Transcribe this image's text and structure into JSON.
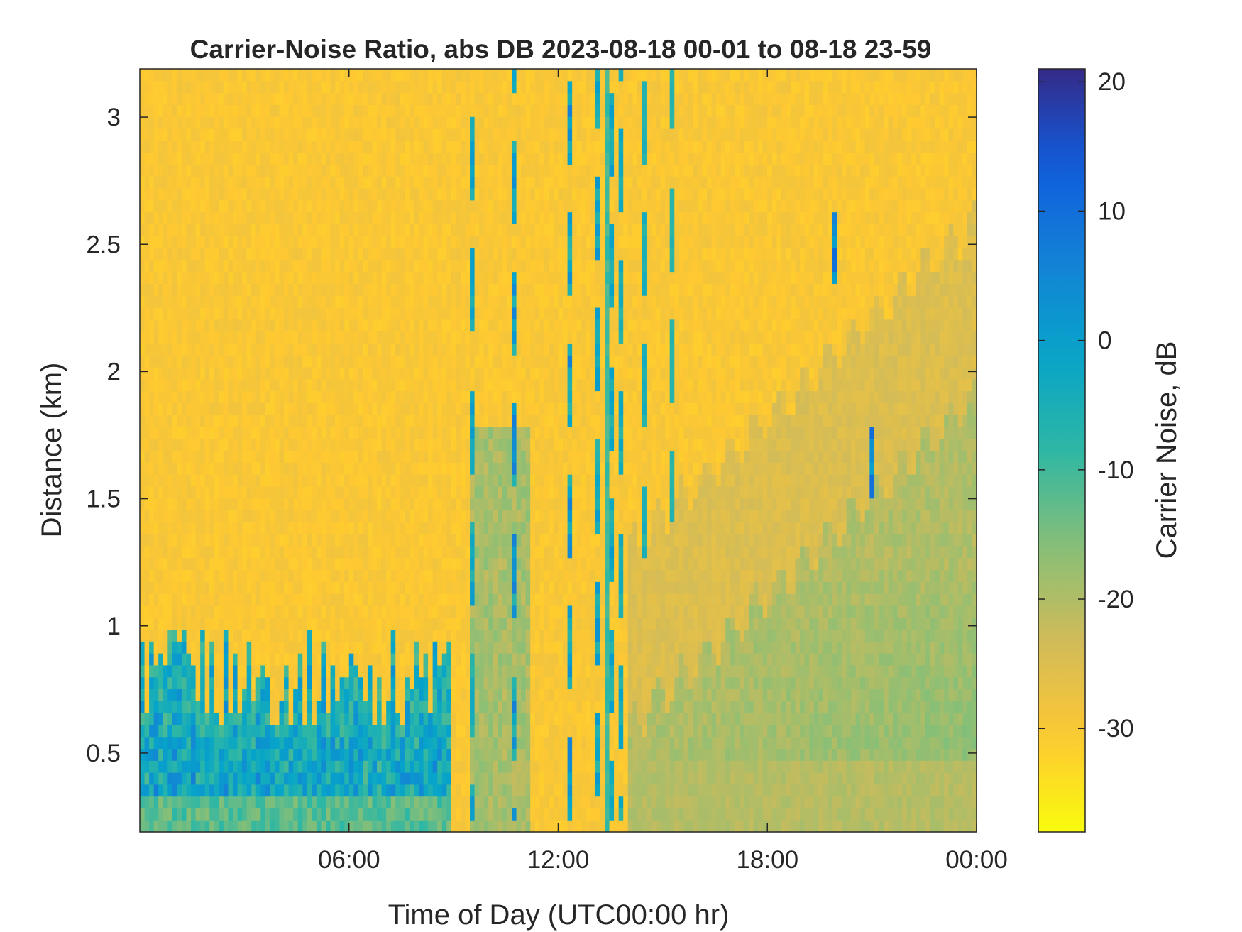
{
  "chart_data": {
    "type": "heatmap",
    "title": "Carrier-Noise Ratio, abs DB 2023-08-18 00-01 to 08-18 23-59",
    "xlabel": "Time of Day (UTC00:00 hr)",
    "ylabel": "Distance (km)",
    "colorbar_label": "Carrier Noise, dB",
    "x_ticks": [
      {
        "value": 6,
        "label": "06:00"
      },
      {
        "value": 12,
        "label": "12:00"
      },
      {
        "value": 18,
        "label": "18:00"
      },
      {
        "value": 24,
        "label": "00:00"
      }
    ],
    "y_ticks": [
      {
        "value": 0.5,
        "label": "0.5"
      },
      {
        "value": 1,
        "label": "1"
      },
      {
        "value": 1.5,
        "label": "1.5"
      },
      {
        "value": 2,
        "label": "2"
      },
      {
        "value": 2.5,
        "label": "2.5"
      },
      {
        "value": 3,
        "label": "3"
      }
    ],
    "colorbar_ticks": [
      {
        "value": 20,
        "label": "20"
      },
      {
        "value": 10,
        "label": "10"
      },
      {
        "value": 0,
        "label": "0"
      },
      {
        "value": -10,
        "label": "-10"
      },
      {
        "value": -20,
        "label": "-20"
      },
      {
        "value": -30,
        "label": "-30"
      }
    ],
    "xlim": [
      0,
      24
    ],
    "ylim": [
      0.19,
      3.19
    ],
    "clim": [
      -38,
      21
    ],
    "colormap": [
      "#352a87",
      "#0f5cdd",
      "#1481d6",
      "#06a4ca",
      "#2eb7a4",
      "#87bf77",
      "#d1bb59",
      "#fec832",
      "#f9fb0e"
    ],
    "colormap_reversed": true,
    "grid": false,
    "features": {
      "background_cnr": -30,
      "surface_layer": {
        "time_range": [
          0,
          9
        ],
        "top_km": [
          0.6,
          1.0
        ],
        "cnr_range": [
          -5,
          18
        ]
      },
      "daytime_convective_plumes": {
        "time_range": [
          9.5,
          15.5
        ],
        "top_km": 3.19,
        "cnr_range": [
          -15,
          15
        ]
      },
      "vertical_stripe": {
        "time": 13.4,
        "cnr": -10
      },
      "evening_boundary_layer": {
        "time_range": [
          14,
          24
        ],
        "top_km": [
          0.6,
          1.9
        ],
        "cnr_range": [
          -20,
          -12
        ]
      },
      "high_clouds": {
        "time_range": [
          19.5,
          23.5
        ],
        "height_km": [
          1.6,
          2.7
        ],
        "cnr_range": [
          0,
          15
        ]
      }
    }
  }
}
